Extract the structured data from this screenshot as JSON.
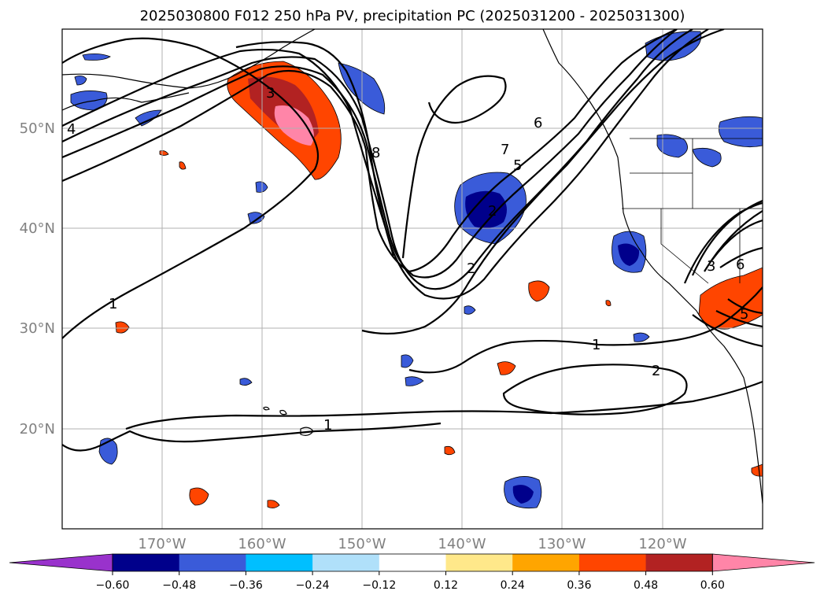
{
  "title": "2025030800 F012 250 hPa PV, precipitation PC (2025031200 - 2025031300)",
  "lat_labels": [
    "50°N",
    "40°N",
    "30°N",
    "20°N"
  ],
  "lon_labels": [
    "170°W",
    "160°W",
    "150°W",
    "140°W",
    "130°W",
    "120°W"
  ],
  "colorbar": {
    "tick_labels": [
      "−0.60",
      "−0.48",
      "−0.36",
      "−0.24",
      "−0.12",
      "0.12",
      "0.24",
      "0.36",
      "0.48",
      "0.60"
    ],
    "colors": [
      "#9932cc",
      "#00008b",
      "#3a5bd9",
      "#00bfff",
      "#b0e0fa",
      "#ffffff",
      "#ffe88a",
      "#ffa500",
      "#ff4500",
      "#b22222",
      "#ff85a8"
    ]
  },
  "contour_labels": {
    "c1": "1",
    "c2": "2",
    "c3": "3",
    "c4": "4",
    "c5": "5",
    "c6": "6",
    "c7": "7",
    "c8": "8",
    "c1b": "1",
    "c2b": "2",
    "c1c": "1",
    "c3b": "3",
    "c6b": "6",
    "c5b": "5",
    "c2c": "2"
  }
}
